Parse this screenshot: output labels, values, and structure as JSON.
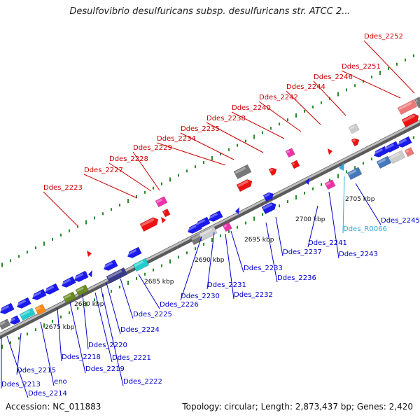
{
  "title": "Desulfovibrio desulfuricans subsp. desulfuricans str. ATCC 2...",
  "footer": {
    "accession": "Accession: NC_011883",
    "summary": "Topology: circular; Length: 2,873,437 bp; Genes: 2,420"
  },
  "kbp_labels": [
    "2675 kbp",
    "2680 kbp",
    "2685 kbp",
    "2690 kbp",
    "2695 kbp",
    "2700 kbp",
    "2705 kbp"
  ],
  "genes_top": [
    "Ddes_2223",
    "Ddes_2227",
    "Ddes_2228",
    "Ddes_2229",
    "Ddes_2234",
    "Ddes_2235",
    "Ddes_2238",
    "Ddes_2240",
    "Ddes_2242",
    "Ddes_2244",
    "Ddes_2246",
    "Ddes_2251",
    "Ddes_2252"
  ],
  "genes_bottom": [
    "Ddes_2213",
    "Ddes_2214",
    "Ddes_2215",
    "eno",
    "Ddes_2218",
    "Ddes_2219",
    "Ddes_2220",
    "Ddes_2221",
    "Ddes_2222",
    "Ddes_2224",
    "Ddes_2225",
    "Ddes_2226",
    "Ddes_2230",
    "Ddes_2231",
    "Ddes_2232",
    "Ddes_2233",
    "Ddes_2236",
    "Ddes_2237",
    "Ddes_2241",
    "Ddes_2243",
    "Ddes_R0066",
    "Ddes_2245"
  ],
  "colors": {
    "forward_label": "#cc0000",
    "reverse_label": "#0000cc",
    "rna_label": "#33aadd",
    "backbone": "#8a8a8a",
    "tick": "#2a8a2a"
  }
}
